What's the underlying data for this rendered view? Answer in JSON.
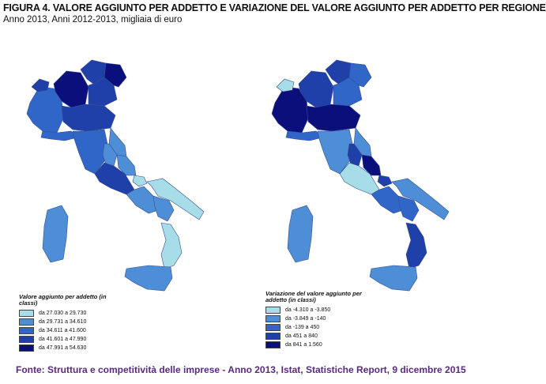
{
  "header": {
    "title": "FIGURA 4. VALORE AGGIUNTO PER ADDETTO E VARIAZIONE DEL VALORE AGGIUNTO PER ADDETTO PER REGIONE",
    "subtitle": "Anno 2013, Anni 2012-2013, migliaia di euro"
  },
  "colors": {
    "c1": "#a6dde9",
    "c2": "#4d8ed6",
    "c3": "#2f66c8",
    "c4": "#1f3fa9",
    "c5": "#0b0f7c"
  },
  "left_legend": {
    "title": "Valore aggiunto per addetto (in classi)",
    "items": [
      {
        "label": "da 27.030 a 29.730",
        "color": "#a6dde9"
      },
      {
        "label": "da 29.731 a 34.610",
        "color": "#4d8ed6"
      },
      {
        "label": "da 34.611 a 41.600",
        "color": "#2f66c8"
      },
      {
        "label": "da 41.601 a 47.990",
        "color": "#1f3fa9"
      },
      {
        "label": "da 47.991 a 54.630",
        "color": "#0b0f7c"
      }
    ]
  },
  "right_legend": {
    "title": "Variazione del valore aggiunto per addetto (in classi)",
    "items": [
      {
        "label": "da -4.310 a -3.850",
        "color": "#a6dde9"
      },
      {
        "label": "da -3.849 a -140",
        "color": "#4d8ed6"
      },
      {
        "label": "da -139 a 450",
        "color": "#2f66c8"
      },
      {
        "label": "da 451 a 840",
        "color": "#1f3fa9"
      },
      {
        "label": "da 841 a 1.560",
        "color": "#0b0f7c"
      }
    ]
  },
  "footer": {
    "source": "Fonte: Struttura e competitività delle imprese - Anno 2013, Istat, Statistiche Report, 9 dicembre 2015"
  }
}
